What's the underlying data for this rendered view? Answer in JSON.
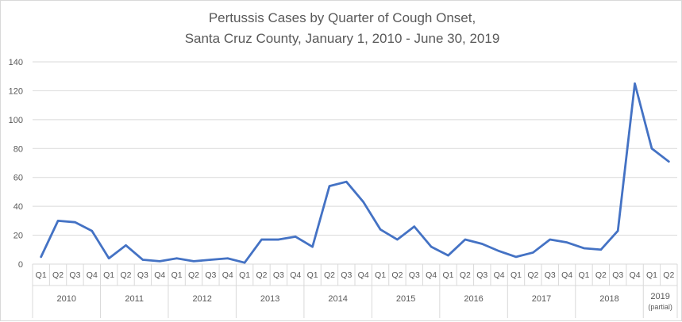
{
  "chart_data": {
    "type": "line",
    "title_line1": "Pertussis Cases by Quarter of Cough Onset,",
    "title_line2": "Santa Cruz County, January 1, 2010 - June 30, 2019",
    "ylim": [
      0,
      140
    ],
    "yticks": [
      "0",
      "20",
      "40",
      "60",
      "80",
      "100",
      "120",
      "140"
    ],
    "grid": true,
    "legend": "none",
    "line_color": "#4472c4",
    "groups": [
      {
        "label": "2010",
        "quarters": [
          "Q1",
          "Q2",
          "Q3",
          "Q4"
        ]
      },
      {
        "label": "2011",
        "quarters": [
          "Q1",
          "Q2",
          "Q3",
          "Q4"
        ]
      },
      {
        "label": "2012",
        "quarters": [
          "Q1",
          "Q2",
          "Q3",
          "Q4"
        ]
      },
      {
        "label": "2013",
        "quarters": [
          "Q1",
          "Q2",
          "Q3",
          "Q4"
        ]
      },
      {
        "label": "2014",
        "quarters": [
          "Q1",
          "Q2",
          "Q3",
          "Q4"
        ]
      },
      {
        "label": "2015",
        "quarters": [
          "Q1",
          "Q2",
          "Q3",
          "Q4"
        ]
      },
      {
        "label": "2016",
        "quarters": [
          "Q1",
          "Q2",
          "Q3",
          "Q4"
        ]
      },
      {
        "label": "2017",
        "quarters": [
          "Q1",
          "Q2",
          "Q3",
          "Q4"
        ]
      },
      {
        "label": "2018",
        "quarters": [
          "Q1",
          "Q2",
          "Q3",
          "Q4"
        ]
      },
      {
        "label": "2019",
        "sublabel": "(partial)",
        "quarters": [
          "Q1",
          "Q2"
        ]
      }
    ],
    "values": [
      5,
      30,
      29,
      23,
      4,
      13,
      3,
      2,
      4,
      2,
      3,
      4,
      1,
      17,
      17,
      19,
      12,
      54,
      57,
      43,
      24,
      17,
      26,
      12,
      6,
      17,
      14,
      9,
      5,
      8,
      17,
      15,
      11,
      10,
      23,
      125,
      80,
      71
    ]
  }
}
